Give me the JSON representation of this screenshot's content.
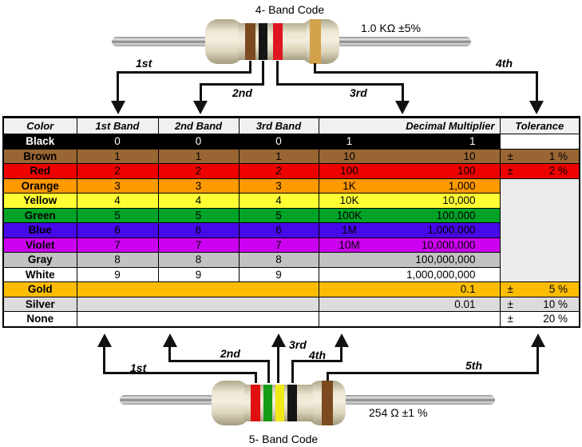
{
  "top_section": {
    "title": "4- Band Code",
    "value_label": "1.0 KΩ  ±5%",
    "arrow_labels": [
      "1st",
      "2nd",
      "3rd",
      "4th"
    ],
    "band_colors": [
      "brown",
      "black",
      "red",
      "gold"
    ],
    "band_hex": {
      "brown": "#7B4A21",
      "black": "#151515",
      "red": "#DD1520",
      "gold": "#D2A24C"
    }
  },
  "table": {
    "headers": [
      "Color",
      "1st Band",
      "2nd Band",
      "3rd Band",
      "Decimal Multiplier",
      "Tolerance"
    ],
    "rows": [
      {
        "name": "Black",
        "band1": "0",
        "band2": "0",
        "band3": "0",
        "mult_prefix": "1",
        "mult_value": "1",
        "tol_sign": "",
        "tol_value": "",
        "row_color": "#000000",
        "text_color": "#FFFFFF",
        "tol_color": "#FFFFFF",
        "merged_bands": false
      },
      {
        "name": "Brown",
        "band1": "1",
        "band2": "1",
        "band3": "1",
        "mult_prefix": "10",
        "mult_value": "10",
        "tol_sign": "±",
        "tol_value": "1 %",
        "row_color": "#996633",
        "text_color": "#000000",
        "tol_color": "",
        "merged_bands": false
      },
      {
        "name": "Red",
        "band1": "2",
        "band2": "2",
        "band3": "2",
        "mult_prefix": "100",
        "mult_value": "100",
        "tol_sign": "±",
        "tol_value": "2 %",
        "row_color": "#EE0000",
        "text_color": "#000000",
        "tol_color": "",
        "merged_bands": false
      },
      {
        "name": "Orange",
        "band1": "3",
        "band2": "3",
        "band3": "3",
        "mult_prefix": "1K",
        "mult_value": "1,000",
        "tol_sign": "",
        "tol_value": "",
        "row_color": "#FF9900",
        "text_color": "#000000",
        "tol_color": "#EBEBEB",
        "merged_bands": false
      },
      {
        "name": "Yellow",
        "band1": "4",
        "band2": "4",
        "band3": "4",
        "mult_prefix": "10K",
        "mult_value": "10,000",
        "tol_sign": "",
        "tol_value": "",
        "row_color": "#FFFF33",
        "text_color": "#000000",
        "tol_color": "",
        "merged_bands": false
      },
      {
        "name": "Green",
        "band1": "5",
        "band2": "5",
        "band3": "5",
        "mult_prefix": "100K",
        "mult_value": "100,000",
        "tol_sign": "",
        "tol_value": "",
        "row_color": "#00A327",
        "text_color": "#000000",
        "tol_color": "",
        "merged_bands": false
      },
      {
        "name": "Blue",
        "band1": "6",
        "band2": "6",
        "band3": "6",
        "mult_prefix": "1M",
        "mult_value": "1,000,000",
        "tol_sign": "",
        "tol_value": "",
        "row_color": "#4609E8",
        "text_color": "#000000",
        "tol_color": "",
        "merged_bands": false
      },
      {
        "name": "Violet",
        "band1": "7",
        "band2": "7",
        "band3": "7",
        "mult_prefix": "10M",
        "mult_value": "10,000,000",
        "tol_sign": "",
        "tol_value": "",
        "row_color": "#CC00F0",
        "text_color": "#000000",
        "tol_color": "",
        "merged_bands": false
      },
      {
        "name": "Gray",
        "band1": "8",
        "band2": "8",
        "band3": "8",
        "mult_prefix": "",
        "mult_value": "100,000,000",
        "tol_sign": "",
        "tol_value": "",
        "row_color": "#C2C2C2",
        "text_color": "#000000",
        "tol_color": "",
        "merged_bands": false
      },
      {
        "name": "White",
        "band1": "9",
        "band2": "9",
        "band3": "9",
        "mult_prefix": "",
        "mult_value": "1,000,000,000",
        "tol_sign": "",
        "tol_value": "",
        "row_color": "#FFFFFF",
        "text_color": "#000000",
        "tol_color": "",
        "merged_bands": false
      },
      {
        "name": "Gold",
        "band1": "",
        "band2": "",
        "band3": "",
        "mult_prefix": "",
        "mult_value": "0.1",
        "tol_sign": "±",
        "tol_value": "5 %",
        "row_color": "#FBBC02",
        "text_color": "#000000",
        "tol_color": "",
        "merged_bands": true
      },
      {
        "name": "Silver",
        "band1": "",
        "band2": "",
        "band3": "",
        "mult_prefix": "",
        "mult_value": "0.01",
        "tol_sign": "±",
        "tol_value": "10 %",
        "row_color": "#DCDCDC",
        "text_color": "#000000",
        "tol_color": "",
        "merged_bands": true
      },
      {
        "name": "None",
        "band1": "",
        "band2": "",
        "band3": "",
        "mult_prefix": "",
        "mult_value": "",
        "tol_sign": "±",
        "tol_value": "20 %",
        "row_color": "#FFFFFF",
        "text_color": "#000000",
        "tol_color": "",
        "merged_bands": true
      }
    ],
    "empty_tolerance_block_color": "#EBEBEB",
    "header_color": "#F0F0F0"
  },
  "bottom_section": {
    "title": "5- Band Code",
    "value_label": "254 Ω  ±1 %",
    "arrow_labels": [
      "1st",
      "2nd",
      "3rd",
      "4th",
      "5th"
    ],
    "band_colors": [
      "red",
      "green",
      "yellow",
      "black",
      "brown"
    ],
    "band_hex": {
      "red": "#E01010",
      "green": "#169C16",
      "yellow": "#F0E818",
      "black": "#151515",
      "brown": "#7B4A21"
    }
  }
}
